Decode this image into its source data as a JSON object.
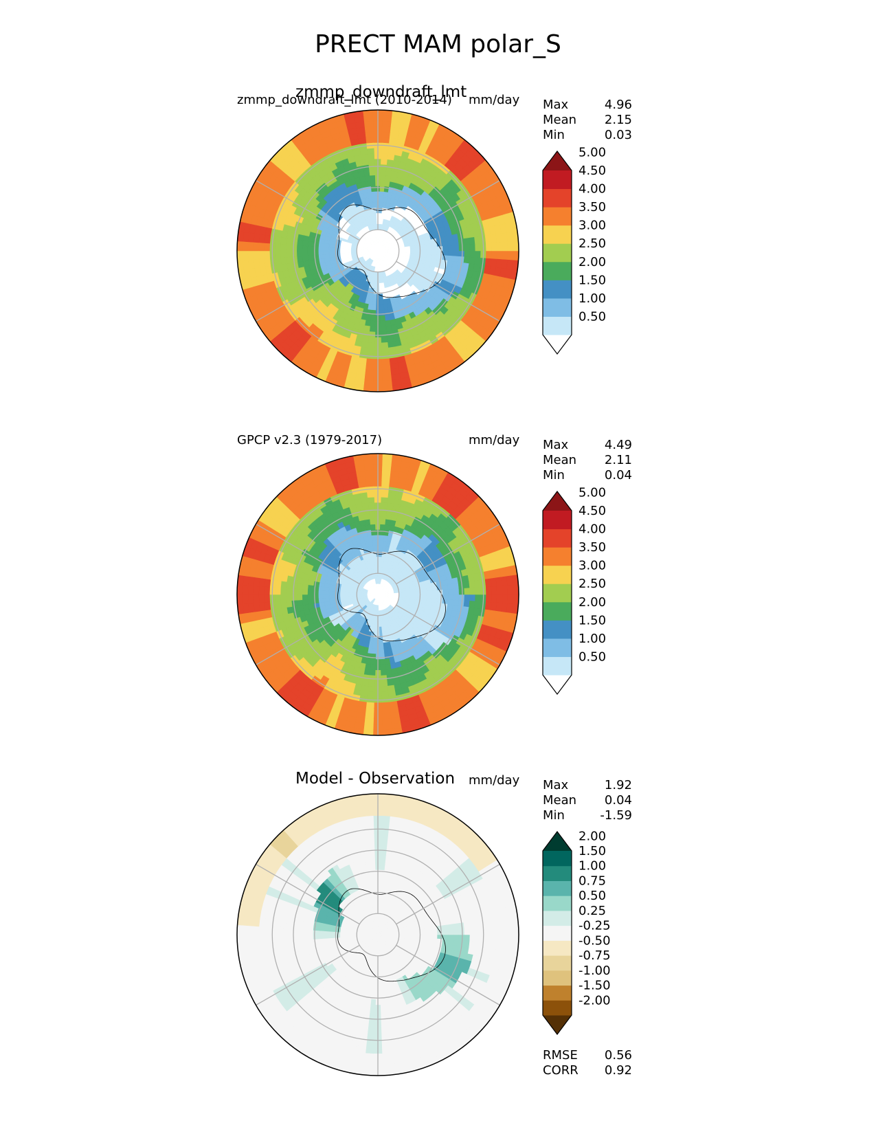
{
  "figure_title": "PRECT MAM polar_S",
  "chart_data": [
    {
      "type": "heatmap",
      "projection": "south-polar-stereographic",
      "panel_title": "zmmp_downdraft_lmt",
      "left_label": "zmmp_downdraft_lmt (2010-2014)",
      "units": "mm/day",
      "stats": [
        {
          "name": "Max",
          "value": "4.96"
        },
        {
          "name": "Mean",
          "value": "2.15"
        },
        {
          "name": "Min",
          "value": "0.03"
        }
      ],
      "colorbar": {
        "levels": [
          "0.50",
          "1.00",
          "1.50",
          "2.00",
          "2.50",
          "3.00",
          "3.50",
          "4.00",
          "4.50",
          "5.00"
        ],
        "colors": [
          "#ffffff",
          "#c6e7f7",
          "#7fbde5",
          "#4490c4",
          "#4aab5c",
          "#a2cd50",
          "#f7d250",
          "#f5802e",
          "#e4432a",
          "#c11b22",
          "#8c1517"
        ]
      },
      "field": {
        "pole": 0.25,
        "land_low": 0.5,
        "coast_band": 1.4,
        "ocean_mid": 2.3,
        "outer_ring": 3.7,
        "max": 4.96
      }
    },
    {
      "type": "heatmap",
      "projection": "south-polar-stereographic",
      "panel_title": "",
      "left_label": "GPCP v2.3 (1979-2017)",
      "units": "mm/day",
      "stats": [
        {
          "name": "Max",
          "value": "4.49"
        },
        {
          "name": "Mean",
          "value": "2.11"
        },
        {
          "name": "Min",
          "value": "0.04"
        }
      ],
      "colorbar": {
        "levels": [
          "0.50",
          "1.00",
          "1.50",
          "2.00",
          "2.50",
          "3.00",
          "3.50",
          "4.00",
          "4.50",
          "5.00"
        ],
        "colors": [
          "#ffffff",
          "#c6e7f7",
          "#7fbde5",
          "#4490c4",
          "#4aab5c",
          "#a2cd50",
          "#f7d250",
          "#f5802e",
          "#e4432a",
          "#c11b22",
          "#8c1517"
        ]
      },
      "field": {
        "pole": 0.25,
        "land_low": 0.8,
        "coast_band": 1.3,
        "ocean_mid": 2.2,
        "outer_ring": 3.8,
        "max": 4.49
      }
    },
    {
      "type": "heatmap",
      "projection": "south-polar-stereographic",
      "panel_title": "Model - Observation",
      "left_label": "",
      "units": "mm/day",
      "stats": [
        {
          "name": "Max",
          "value": "1.92"
        },
        {
          "name": "Mean",
          "value": "0.04"
        },
        {
          "name": "Min",
          "value": "-1.59"
        }
      ],
      "extra_stats": [
        {
          "name": "RMSE",
          "value": "0.56"
        },
        {
          "name": "CORR",
          "value": "0.92"
        }
      ],
      "colorbar": {
        "levels": [
          "-2.00",
          "-1.50",
          "-1.00",
          "-0.75",
          "-0.50",
          "-0.25",
          "0.25",
          "0.50",
          "0.75",
          "1.00",
          "1.50",
          "2.00"
        ],
        "colors": [
          "#543005",
          "#8c510a",
          "#bf812d",
          "#dfc27d",
          "#e8d49b",
          "#f6e8c3",
          "#f5f5f5",
          "#d3ece7",
          "#99d8c9",
          "#5ab4ac",
          "#238b7c",
          "#01665e",
          "#003c30"
        ]
      },
      "field": {
        "pole": 0.0,
        "coast_band": 0.9,
        "ocean_mid": 0.1,
        "outer_ring": -0.5,
        "max": 1.92,
        "min": -1.59
      }
    }
  ]
}
